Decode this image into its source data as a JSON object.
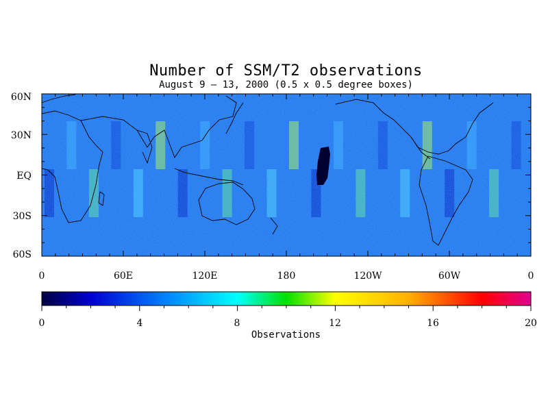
{
  "map": {
    "title": "Number of SSM/T2 observations",
    "subtitle": "August 9 – 13, 2000 (0.5 x 0.5 degree boxes)",
    "lat_labels": [
      "60N",
      "30N",
      "EQ",
      "30S",
      "60S"
    ],
    "lon_labels": [
      "0",
      "60E",
      "120E",
      "180",
      "120W",
      "60W",
      "0"
    ],
    "lat_range": [
      -60,
      60
    ],
    "lon_range": [
      0,
      360
    ],
    "land_outline_color": "#000000"
  },
  "colorbar": {
    "tick_labels": [
      "0",
      "4",
      "8",
      "12",
      "16",
      "20"
    ],
    "range": [
      0,
      20
    ],
    "label": "Observations",
    "colors": [
      "#000040",
      "#0000d0",
      "#0060ff",
      "#00c0ff",
      "#00ffff",
      "#00e000",
      "#c0ff00",
      "#ffff00",
      "#ffb000",
      "#ff6000",
      "#ff0000",
      "#e00080"
    ]
  }
}
